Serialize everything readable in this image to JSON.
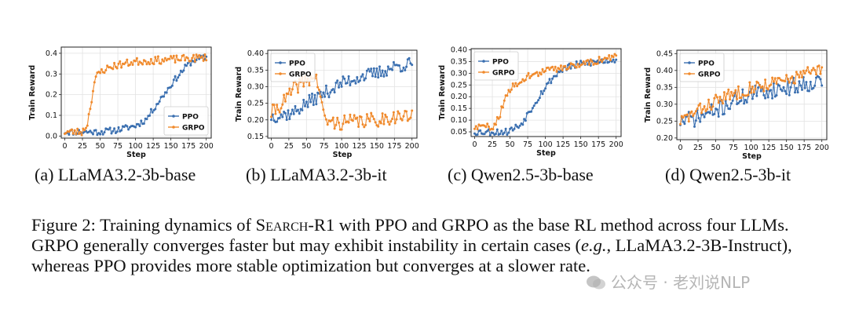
{
  "colors": {
    "ppo": "#3a6fb0",
    "grpo": "#f08a2c"
  },
  "subcaptions": [
    "(a) LLaMA3.2-3b-base",
    "(b) LLaMA3.2-3b-it",
    "(c) Qwen2.5-3b-base",
    "(d) Qwen2.5-3b-it"
  ],
  "caption": {
    "prefix": "Figure 2: Training dynamics of ",
    "method_name": "Search",
    "method_suffix": "-R1",
    "line1_rest": " with PPO and GRPO as the base RL method across four LLMs. GRPO generally converges faster but may exhibit instability in certain cases (",
    "eg": "e.g.",
    "line3_rest": ", LLaMA3.2-3B-Instruct), whereas PPO provides more stable optimization but converges at a slower rate."
  },
  "watermark": "公众号 · 老刘说NLP",
  "chart_data": [
    {
      "type": "line",
      "xlabel": "Step",
      "ylabel": "Train Reward",
      "xlim": [
        -5,
        207
      ],
      "ylim": [
        -0.01,
        0.43
      ],
      "xticks": [
        0,
        25,
        50,
        75,
        100,
        125,
        150,
        175,
        200
      ],
      "yticks": [
        0.0,
        0.1,
        0.2,
        0.3,
        0.4
      ],
      "ytick_labels": [
        "0.0",
        "0.1",
        "0.2",
        "0.3",
        "0.4"
      ],
      "legend": "bottom-right",
      "series": [
        {
          "name": "PPO",
          "anchors": [
            [
              0,
              0.02
            ],
            [
              50,
              0.02
            ],
            [
              75,
              0.03
            ],
            [
              100,
              0.05
            ],
            [
              115,
              0.08
            ],
            [
              125,
              0.13
            ],
            [
              140,
              0.2
            ],
            [
              155,
              0.27
            ],
            [
              165,
              0.31
            ],
            [
              175,
              0.35
            ],
            [
              185,
              0.37
            ],
            [
              200,
              0.38
            ]
          ],
          "noise": 0.015,
          "seed": 11
        },
        {
          "name": "GRPO",
          "anchors": [
            [
              0,
              0.02
            ],
            [
              25,
              0.02
            ],
            [
              32,
              0.06
            ],
            [
              38,
              0.18
            ],
            [
              42,
              0.26
            ],
            [
              47,
              0.3
            ],
            [
              55,
              0.32
            ],
            [
              70,
              0.34
            ],
            [
              100,
              0.36
            ],
            [
              150,
              0.37
            ],
            [
              200,
              0.38
            ]
          ],
          "noise": 0.018,
          "seed": 23
        }
      ]
    },
    {
      "type": "line",
      "xlabel": "Step",
      "ylabel": "Train Reward",
      "xlim": [
        -5,
        207
      ],
      "ylim": [
        0.145,
        0.41
      ],
      "xticks": [
        0,
        25,
        50,
        75,
        100,
        125,
        150,
        175,
        200
      ],
      "yticks": [
        0.15,
        0.2,
        0.25,
        0.3,
        0.35,
        0.4
      ],
      "ytick_labels": [
        "0.15",
        "0.20",
        "0.25",
        "0.30",
        "0.35",
        "0.40"
      ],
      "legend": "top-left",
      "series": [
        {
          "name": "PPO",
          "anchors": [
            [
              0,
              0.21
            ],
            [
              30,
              0.22
            ],
            [
              50,
              0.25
            ],
            [
              75,
              0.28
            ],
            [
              100,
              0.31
            ],
            [
              125,
              0.33
            ],
            [
              150,
              0.34
            ],
            [
              175,
              0.36
            ],
            [
              200,
              0.37
            ]
          ],
          "noise": 0.02,
          "seed": 37
        },
        {
          "name": "GRPO",
          "anchors": [
            [
              0,
              0.22
            ],
            [
              20,
              0.26
            ],
            [
              35,
              0.3
            ],
            [
              50,
              0.32
            ],
            [
              62,
              0.33
            ],
            [
              68,
              0.3
            ],
            [
              75,
              0.2
            ],
            [
              90,
              0.19
            ],
            [
              150,
              0.2
            ],
            [
              175,
              0.21
            ],
            [
              200,
              0.21
            ]
          ],
          "noise": 0.022,
          "seed": 41
        }
      ]
    },
    {
      "type": "line",
      "xlabel": "Step",
      "ylabel": "Train Reward",
      "xlim": [
        -5,
        207
      ],
      "ylim": [
        0.03,
        0.405
      ],
      "xticks": [
        0,
        25,
        50,
        75,
        100,
        125,
        150,
        175,
        200
      ],
      "yticks": [
        0.05,
        0.1,
        0.15,
        0.2,
        0.25,
        0.3,
        0.35,
        0.4
      ],
      "ytick_labels": [
        "0.05",
        "0.10",
        "0.15",
        "0.20",
        "0.25",
        "0.30",
        "0.35",
        "0.40"
      ],
      "legend": "top-left",
      "series": [
        {
          "name": "PPO",
          "anchors": [
            [
              0,
              0.05
            ],
            [
              45,
              0.05
            ],
            [
              65,
              0.08
            ],
            [
              80,
              0.15
            ],
            [
              95,
              0.22
            ],
            [
              110,
              0.28
            ],
            [
              125,
              0.32
            ],
            [
              150,
              0.34
            ],
            [
              175,
              0.35
            ],
            [
              200,
              0.36
            ]
          ],
          "noise": 0.015,
          "seed": 53
        },
        {
          "name": "GRPO",
          "anchors": [
            [
              0,
              0.07
            ],
            [
              25,
              0.07
            ],
            [
              35,
              0.12
            ],
            [
              45,
              0.2
            ],
            [
              55,
              0.25
            ],
            [
              70,
              0.28
            ],
            [
              100,
              0.31
            ],
            [
              150,
              0.34
            ],
            [
              200,
              0.37
            ]
          ],
          "noise": 0.015,
          "seed": 59
        }
      ]
    },
    {
      "type": "line",
      "xlabel": "Step",
      "ylabel": "Train Reward",
      "xlim": [
        -5,
        207
      ],
      "ylim": [
        0.195,
        0.46
      ],
      "xticks": [
        0,
        25,
        50,
        75,
        100,
        125,
        150,
        175,
        200
      ],
      "yticks": [
        0.2,
        0.25,
        0.3,
        0.35,
        0.4,
        0.45
      ],
      "ytick_labels": [
        "0.20",
        "0.25",
        "0.30",
        "0.35",
        "0.40",
        "0.45"
      ],
      "legend": "top-left",
      "series": [
        {
          "name": "PPO",
          "anchors": [
            [
              0,
              0.25
            ],
            [
              25,
              0.26
            ],
            [
              50,
              0.28
            ],
            [
              75,
              0.31
            ],
            [
              100,
              0.33
            ],
            [
              125,
              0.34
            ],
            [
              150,
              0.35
            ],
            [
              175,
              0.36
            ],
            [
              200,
              0.37
            ]
          ],
          "noise": 0.025,
          "seed": 71
        },
        {
          "name": "GRPO",
          "anchors": [
            [
              0,
              0.25
            ],
            [
              25,
              0.28
            ],
            [
              50,
              0.31
            ],
            [
              75,
              0.33
            ],
            [
              100,
              0.35
            ],
            [
              125,
              0.36
            ],
            [
              150,
              0.37
            ],
            [
              175,
              0.39
            ],
            [
              200,
              0.4
            ]
          ],
          "noise": 0.02,
          "seed": 83
        }
      ]
    }
  ]
}
